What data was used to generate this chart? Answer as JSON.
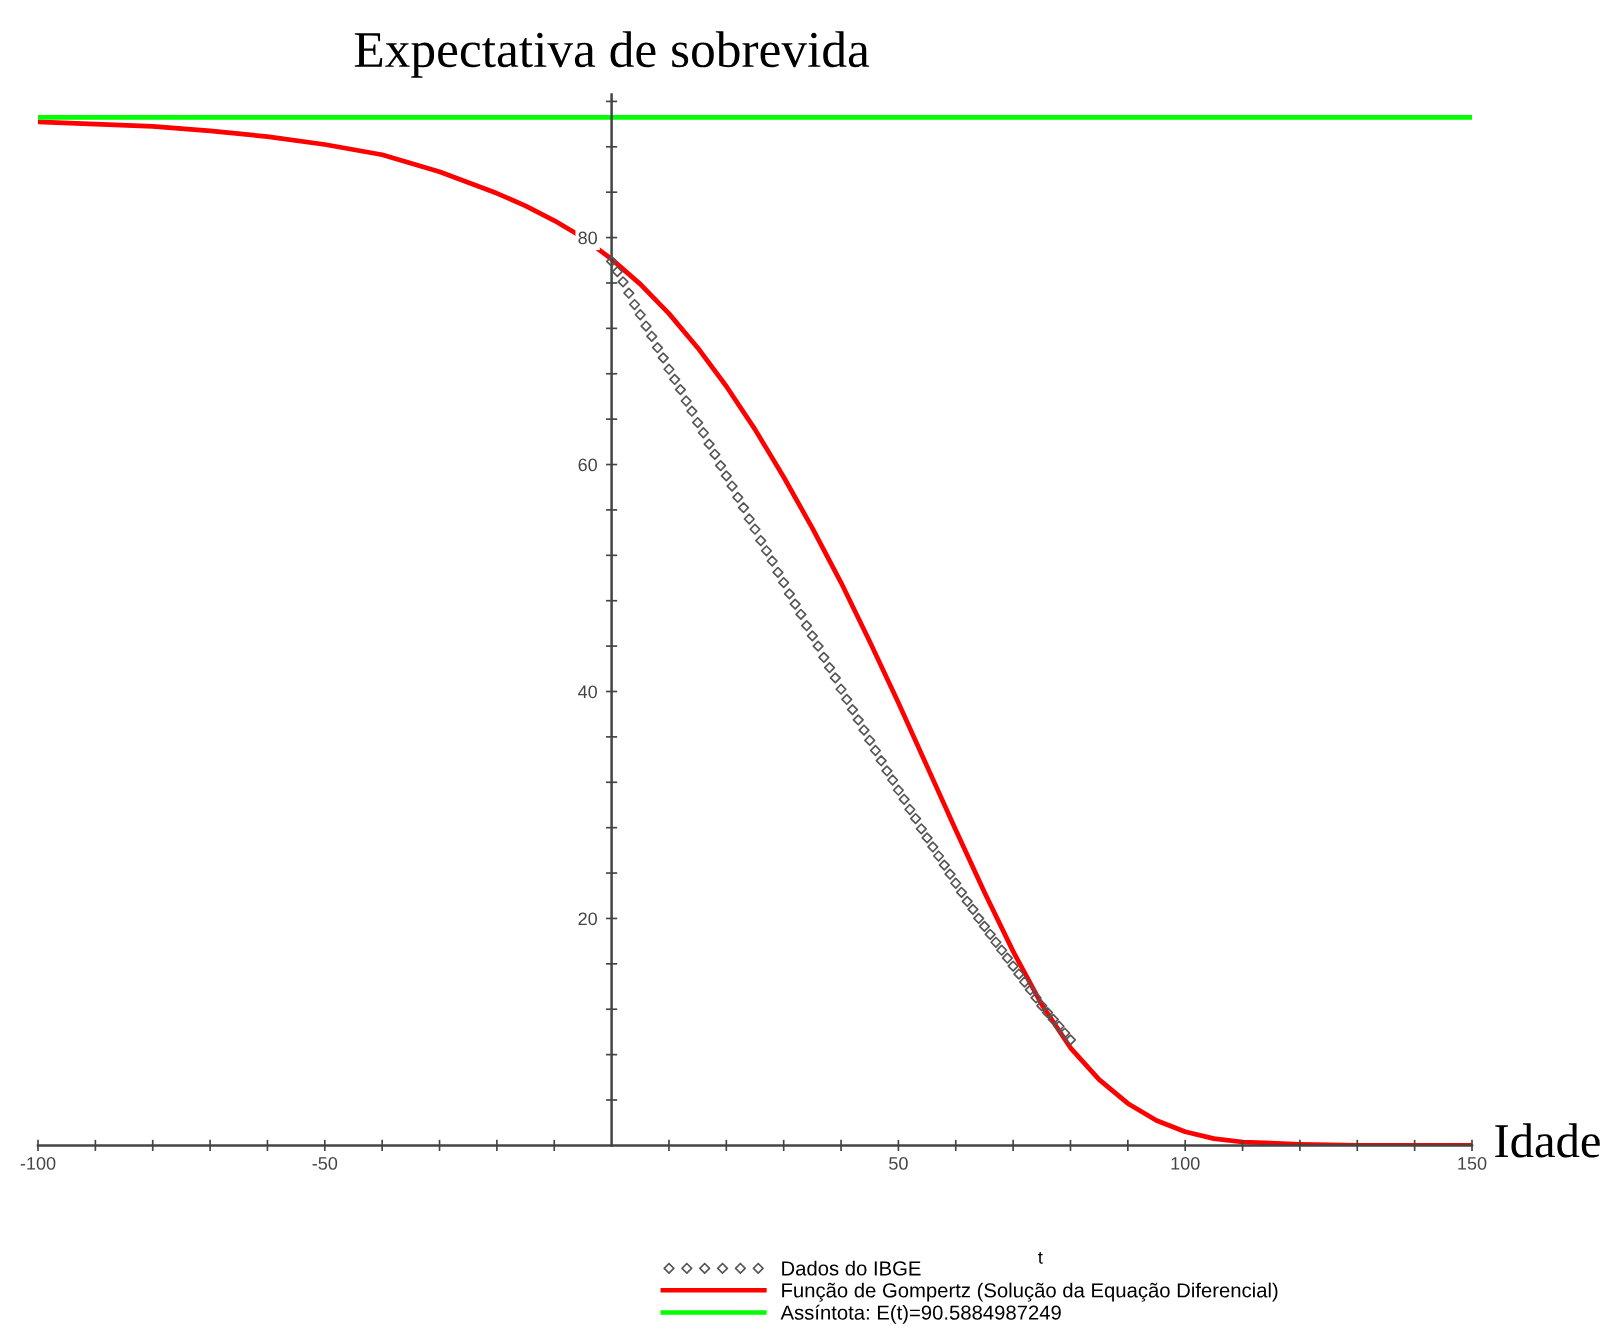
{
  "chart_data": {
    "type": "line",
    "title": "Expectativa de sobrevida",
    "xlabel": "t",
    "annotations": [
      "Idade"
    ],
    "xlim": [
      -100,
      150
    ],
    "ylim": [
      0,
      92.6
    ],
    "xticks": [
      -100,
      {
        "value": -90,
        "label": null
      },
      {
        "value": -80,
        "label": null
      },
      {
        "value": -70,
        "label": null
      },
      {
        "value": -60,
        "label": null
      },
      -50,
      {
        "value": -40,
        "label": null
      },
      {
        "value": -30,
        "label": null
      },
      {
        "value": -20,
        "label": null
      },
      {
        "value": -10,
        "label": null
      },
      {
        "value": 10,
        "label": null
      },
      {
        "value": 20,
        "label": null
      },
      {
        "value": 30,
        "label": null
      },
      {
        "value": 40,
        "label": null
      },
      50,
      {
        "value": 60,
        "label": null
      },
      {
        "value": 70,
        "label": null
      },
      {
        "value": 80,
        "label": null
      },
      {
        "value": 90,
        "label": null
      },
      100,
      {
        "value": 110,
        "label": null
      },
      {
        "value": 120,
        "label": null
      },
      {
        "value": 130,
        "label": null
      },
      {
        "value": 140,
        "label": null
      },
      150
    ],
    "yticks": [
      {
        "value": 4,
        "label": null
      },
      {
        "value": 8,
        "label": null
      },
      {
        "value": 12,
        "label": null
      },
      {
        "value": 16,
        "label": null
      },
      20,
      {
        "value": 24,
        "label": null
      },
      {
        "value": 28,
        "label": null
      },
      {
        "value": 32,
        "label": null
      },
      {
        "value": 36,
        "label": null
      },
      40,
      {
        "value": 44,
        "label": null
      },
      {
        "value": 48,
        "label": null
      },
      {
        "value": 52,
        "label": null
      },
      {
        "value": 56,
        "label": null
      },
      60,
      {
        "value": 64,
        "label": null
      },
      {
        "value": 68,
        "label": null
      },
      {
        "value": 72,
        "label": null
      },
      {
        "value": 76,
        "label": null
      },
      80,
      {
        "value": 84,
        "label": null
      },
      {
        "value": 88,
        "label": null
      },
      {
        "value": 92,
        "label": null
      }
    ],
    "legend": "bottom",
    "series": [
      {
        "name": "Dados do IBGE",
        "type": "scatter",
        "marker": "diamond",
        "color": "#555555",
        "x": [
          0,
          1,
          2,
          3,
          4,
          5,
          6,
          7,
          8,
          9,
          10,
          11,
          12,
          13,
          14,
          15,
          16,
          17,
          18,
          19,
          20,
          21,
          22,
          23,
          24,
          25,
          26,
          27,
          28,
          29,
          30,
          31,
          32,
          33,
          34,
          35,
          36,
          37,
          38,
          39,
          40,
          41,
          42,
          43,
          44,
          45,
          46,
          47,
          48,
          49,
          50,
          51,
          52,
          53,
          54,
          55,
          56,
          57,
          58,
          59,
          60,
          61,
          62,
          63,
          64,
          65,
          66,
          67,
          68,
          69,
          70,
          71,
          72,
          73,
          74,
          75,
          76,
          77,
          78,
          79,
          80
        ],
        "values": [
          77.9,
          77.0,
          76.1,
          75.1,
          74.1,
          73.2,
          72.2,
          71.3,
          70.3,
          69.4,
          68.4,
          67.5,
          66.6,
          65.6,
          64.7,
          63.7,
          62.8,
          61.8,
          60.9,
          59.9,
          59.0,
          58.1,
          57.1,
          56.2,
          55.2,
          54.3,
          53.3,
          52.4,
          51.5,
          50.5,
          49.6,
          48.6,
          47.7,
          46.8,
          45.8,
          44.9,
          44.0,
          43.0,
          42.1,
          41.2,
          40.2,
          39.3,
          38.4,
          37.5,
          36.6,
          35.7,
          34.8,
          33.9,
          33.0,
          32.2,
          31.3,
          30.5,
          29.6,
          28.8,
          27.9,
          27.1,
          26.3,
          25.5,
          24.7,
          23.9,
          23.1,
          22.3,
          21.5,
          20.8,
          20.0,
          19.3,
          18.6,
          17.9,
          17.2,
          16.5,
          15.8,
          15.1,
          14.4,
          13.7,
          13.0,
          12.3,
          11.7,
          11.1,
          10.5,
          9.9,
          9.3
        ]
      },
      {
        "name": "Função de Gompertz (Solução da Equação Diferencial)",
        "color": "#ff0000",
        "x": [
          -100,
          -90,
          -80,
          -70,
          -60,
          -50,
          -40,
          -30,
          -20,
          -15,
          -10,
          -5,
          0,
          5,
          10,
          15,
          20,
          25,
          30,
          35,
          40,
          45,
          50,
          55,
          60,
          65,
          70,
          75,
          80,
          85,
          90,
          95,
          100,
          105,
          110,
          120,
          130,
          140,
          150
        ],
        "values": [
          90.2,
          90.0,
          89.8,
          89.4,
          88.9,
          88.2,
          87.3,
          85.8,
          83.9,
          82.8,
          81.5,
          80.0,
          78.1,
          75.9,
          73.3,
          70.3,
          66.9,
          63.1,
          58.9,
          54.4,
          49.6,
          44.4,
          39.0,
          33.4,
          27.8,
          22.3,
          17.1,
          12.4,
          8.6,
          5.8,
          3.7,
          2.2,
          1.2,
          0.6,
          0.3,
          0.1,
          0.0,
          0.0,
          0.0
        ]
      },
      {
        "name": "Assíntota: E(t)=90.5884987249",
        "color": "#00ff00",
        "x": [
          -100,
          150
        ],
        "values": [
          90.5884987249,
          90.5884987249
        ]
      }
    ]
  }
}
